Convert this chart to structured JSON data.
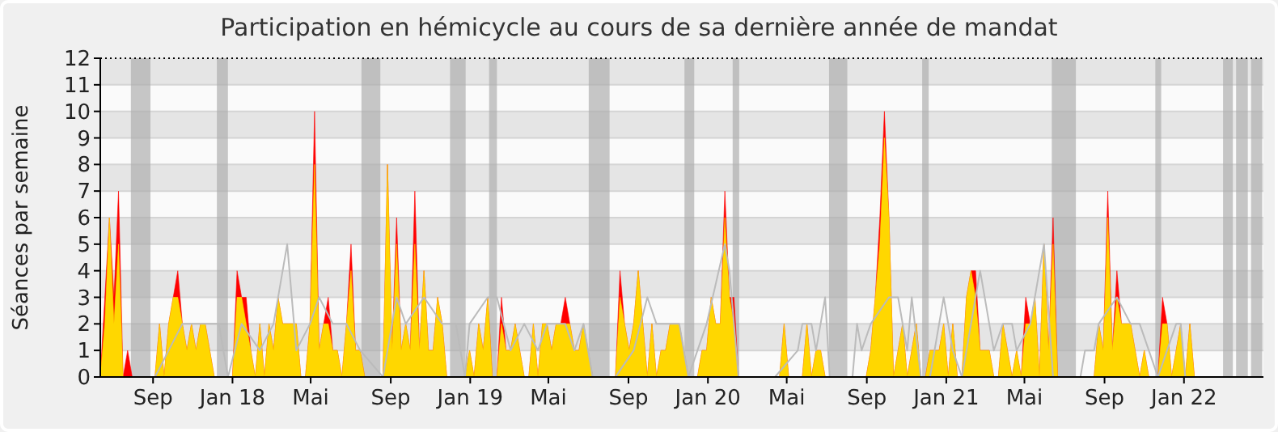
{
  "chart_data": {
    "type": "area",
    "title": "Participation en hémicycle au cours de sa dernière année de mandat",
    "ylabel": "Séances par semaine",
    "xlim": [
      "2017-06-12",
      "2022-05-03"
    ],
    "xticks": [
      {
        "value": "2017-09-01",
        "label": "Sep"
      },
      {
        "value": "2018-01-01",
        "label": "Jan 18"
      },
      {
        "value": "2018-05-01",
        "label": "Mai"
      },
      {
        "value": "2018-09-01",
        "label": "Sep"
      },
      {
        "value": "2019-01-01",
        "label": "Jan 19"
      },
      {
        "value": "2019-05-01",
        "label": "Mai"
      },
      {
        "value": "2019-09-01",
        "label": "Sep"
      },
      {
        "value": "2020-01-01",
        "label": "Jan 20"
      },
      {
        "value": "2020-05-01",
        "label": "Mai"
      },
      {
        "value": "2020-09-01",
        "label": "Sep"
      },
      {
        "value": "2021-01-01",
        "label": "Jan 21"
      },
      {
        "value": "2021-05-01",
        "label": "Mai"
      },
      {
        "value": "2021-09-01",
        "label": "Sep"
      },
      {
        "value": "2022-01-01",
        "label": "Jan 22"
      }
    ],
    "ylim": [
      0,
      12
    ],
    "yticks": [
      0,
      1,
      2,
      3,
      4,
      5,
      6,
      7,
      8,
      9,
      10,
      11,
      12
    ],
    "grid": "y",
    "x": [
      "2017-06-12",
      "2017-06-19",
      "2017-06-26",
      "2017-07-03",
      "2017-07-10",
      "2017-07-17",
      "2017-07-24",
      "2017-07-31",
      "2017-09-04",
      "2017-09-11",
      "2017-09-18",
      "2017-09-25",
      "2017-10-02",
      "2017-10-09",
      "2017-10-16",
      "2017-10-23",
      "2017-10-30",
      "2017-11-06",
      "2017-11-13",
      "2017-11-20",
      "2017-11-27",
      "2017-12-04",
      "2018-01-01",
      "2018-01-08",
      "2018-01-15",
      "2018-01-22",
      "2018-01-29",
      "2018-02-05",
      "2018-02-12",
      "2018-02-19",
      "2018-02-26",
      "2018-03-05",
      "2018-03-12",
      "2018-03-19",
      "2018-03-26",
      "2018-04-02",
      "2018-04-09",
      "2018-04-16",
      "2018-04-23",
      "2018-04-30",
      "2018-05-07",
      "2018-05-14",
      "2018-05-21",
      "2018-05-28",
      "2018-06-04",
      "2018-06-11",
      "2018-06-18",
      "2018-06-25",
      "2018-07-02",
      "2018-07-09",
      "2018-07-16",
      "2018-07-23",
      "2018-08-20",
      "2018-08-27",
      "2018-09-03",
      "2018-09-10",
      "2018-09-17",
      "2018-09-24",
      "2018-10-01",
      "2018-10-08",
      "2018-10-15",
      "2018-10-22",
      "2018-10-29",
      "2018-11-05",
      "2018-11-12",
      "2018-11-19",
      "2018-11-26",
      "2018-12-24",
      "2018-12-31",
      "2019-01-07",
      "2019-01-14",
      "2019-01-21",
      "2019-01-28",
      "2019-02-04",
      "2019-02-11",
      "2019-02-18",
      "2019-02-25",
      "2019-03-04",
      "2019-03-11",
      "2019-03-18",
      "2019-03-25",
      "2019-04-01",
      "2019-04-08",
      "2019-04-15",
      "2019-04-22",
      "2019-04-29",
      "2019-05-06",
      "2019-05-13",
      "2019-05-20",
      "2019-05-27",
      "2019-06-03",
      "2019-06-10",
      "2019-06-17",
      "2019-06-24",
      "2019-07-01",
      "2019-07-08",
      "2019-08-12",
      "2019-08-19",
      "2019-08-26",
      "2019-09-02",
      "2019-09-09",
      "2019-09-16",
      "2019-09-23",
      "2019-09-30",
      "2019-10-07",
      "2019-10-14",
      "2019-10-21",
      "2019-10-28",
      "2019-11-04",
      "2019-11-11",
      "2019-11-18",
      "2019-11-25",
      "2019-12-02",
      "2019-12-09",
      "2019-12-16",
      "2019-12-23",
      "2019-12-30",
      "2020-01-06",
      "2020-01-13",
      "2020-01-20",
      "2020-01-27",
      "2020-02-03",
      "2020-02-10",
      "2020-02-17",
      "2020-04-20",
      "2020-04-27",
      "2020-05-04",
      "2020-05-25",
      "2020-06-01",
      "2020-06-08",
      "2020-06-15",
      "2020-06-22",
      "2020-06-29",
      "2020-08-31",
      "2020-09-07",
      "2020-09-14",
      "2020-09-21",
      "2020-09-28",
      "2020-10-05",
      "2020-10-12",
      "2020-10-19",
      "2020-10-26",
      "2020-11-02",
      "2020-11-09",
      "2020-11-16",
      "2020-11-23",
      "2020-11-30",
      "2020-12-07",
      "2020-12-21",
      "2020-12-28",
      "2021-01-04",
      "2021-01-11",
      "2021-01-18",
      "2021-01-25",
      "2021-02-01",
      "2021-02-08",
      "2021-02-15",
      "2021-02-22",
      "2021-03-08",
      "2021-03-15",
      "2021-03-22",
      "2021-03-29",
      "2021-04-05",
      "2021-04-12",
      "2021-04-19",
      "2021-04-26",
      "2021-05-03",
      "2021-05-10",
      "2021-05-17",
      "2021-05-24",
      "2021-05-31",
      "2021-06-07",
      "2021-06-14",
      "2021-06-21",
      "2021-08-16",
      "2021-08-23",
      "2021-08-30",
      "2021-09-06",
      "2021-09-13",
      "2021-09-20",
      "2021-09-27",
      "2021-10-04",
      "2021-10-11",
      "2021-10-18",
      "2021-10-25",
      "2021-11-01",
      "2021-11-08",
      "2021-11-22",
      "2021-11-29",
      "2021-12-06",
      "2021-12-13",
      "2021-12-20",
      "2021-12-27",
      "2022-01-03",
      "2022-01-10",
      "2022-01-17"
    ],
    "series": [
      {
        "type": "line",
        "color": "#bbbbbb",
        "x": [
          "2017-06-12",
          "2017-09-04",
          "2017-09-25",
          "2017-10-16",
          "2017-11-13",
          "2017-12-11",
          "2017-12-25",
          "2018-01-15",
          "2018-02-12",
          "2018-03-05",
          "2018-03-26",
          "2018-04-09",
          "2018-04-30",
          "2018-05-14",
          "2018-06-04",
          "2018-06-25",
          "2018-07-16",
          "2018-08-20",
          "2018-09-10",
          "2018-09-24",
          "2018-10-22",
          "2018-11-19",
          "2018-12-10",
          "2018-12-24",
          "2018-12-31",
          "2019-01-28",
          "2019-02-11",
          "2019-03-04",
          "2019-03-25",
          "2019-04-15",
          "2019-04-29",
          "2019-05-27",
          "2019-06-10",
          "2019-06-24",
          "2019-07-08",
          "2019-08-12",
          "2019-09-09",
          "2019-09-30",
          "2019-10-14",
          "2019-11-18",
          "2019-12-02",
          "2019-12-16",
          "2019-12-30",
          "2020-01-27",
          "2020-02-03",
          "2020-02-17",
          "2020-04-13",
          "2020-05-18",
          "2020-05-25",
          "2020-06-08",
          "2020-06-15",
          "2020-06-29",
          "2020-07-06",
          "2020-08-10",
          "2020-08-17",
          "2020-08-24",
          "2020-09-07",
          "2020-10-05",
          "2020-10-19",
          "2020-11-02",
          "2020-11-09",
          "2020-11-23",
          "2020-12-07",
          "2020-12-28",
          "2021-01-11",
          "2021-01-25",
          "2021-02-08",
          "2021-02-22",
          "2021-03-15",
          "2021-03-29",
          "2021-04-12",
          "2021-04-19",
          "2021-05-10",
          "2021-05-31",
          "2021-06-14",
          "2021-07-26",
          "2021-08-02",
          "2021-08-16",
          "2021-08-23",
          "2021-09-20",
          "2021-10-11",
          "2021-10-25",
          "2021-11-08",
          "2021-11-22",
          "2021-12-06",
          "2021-12-20",
          "2021-12-27",
          "2022-01-03"
        ],
        "values": [
          0,
          0,
          1,
          2,
          2,
          2,
          0,
          2,
          1,
          2,
          5,
          1,
          2,
          3,
          2,
          2,
          1,
          0,
          3,
          2,
          3,
          2,
          2,
          0,
          2,
          3,
          3,
          1,
          2,
          1,
          2,
          2,
          1,
          2,
          0,
          0,
          1,
          3,
          2,
          2,
          0,
          1,
          2,
          5,
          4,
          0,
          0,
          1,
          2,
          2,
          1,
          3,
          0,
          0,
          2,
          1,
          2,
          3,
          3,
          1,
          3,
          0,
          0,
          3,
          1,
          0,
          2,
          4,
          1,
          2,
          2,
          1,
          2,
          5,
          0,
          0,
          1,
          1,
          2,
          3,
          2,
          2,
          1,
          0,
          1,
          2,
          2,
          0
        ]
      },
      {
        "color": "#ff0000",
        "values": [
          0,
          3,
          6,
          3,
          7,
          0,
          1,
          0,
          0,
          2,
          0,
          2,
          3,
          4,
          2,
          1,
          2,
          1,
          2,
          2,
          1,
          0,
          0,
          4,
          3,
          3,
          1,
          0,
          2,
          0,
          2,
          1,
          3,
          2,
          2,
          2,
          2,
          0,
          0,
          2,
          10,
          1,
          2,
          3,
          1,
          1,
          0,
          2,
          5,
          1,
          1,
          0,
          0,
          8,
          1,
          6,
          1,
          2,
          1,
          7,
          1,
          4,
          1,
          1,
          3,
          2,
          0,
          0,
          1,
          0,
          2,
          1,
          3,
          0,
          0,
          3,
          1,
          1,
          2,
          1,
          0,
          0,
          2,
          0,
          2,
          2,
          1,
          2,
          2,
          3,
          2,
          1,
          1,
          2,
          1,
          0,
          0,
          4,
          2,
          1,
          2,
          4,
          2,
          0,
          2,
          0,
          1,
          1,
          2,
          2,
          2,
          1,
          0,
          0,
          0,
          1,
          1,
          3,
          2,
          2,
          7,
          3,
          3,
          0,
          0,
          2,
          0,
          0,
          2,
          0,
          1,
          1,
          0,
          0,
          1,
          3,
          6,
          10,
          6,
          0,
          1,
          2,
          0,
          1,
          2,
          0,
          0,
          1,
          1,
          2,
          0,
          2,
          0,
          0,
          3,
          4,
          4,
          1,
          1,
          0,
          0,
          2,
          1,
          0,
          1,
          0,
          3,
          2,
          3,
          0,
          5,
          1,
          6,
          0,
          0,
          2,
          1,
          7,
          1,
          4,
          2,
          2,
          2,
          1,
          0,
          1,
          0,
          0,
          3,
          2,
          0,
          1,
          2,
          0,
          2,
          0
        ]
      },
      {
        "color": "#ffd700",
        "values": [
          0,
          2,
          6,
          2,
          5,
          0,
          0,
          0,
          0,
          2,
          0,
          2,
          3,
          3,
          2,
          1,
          2,
          1,
          2,
          2,
          1,
          0,
          0,
          3,
          3,
          2,
          1,
          0,
          2,
          0,
          2,
          1,
          3,
          2,
          2,
          2,
          2,
          0,
          0,
          2,
          8,
          1,
          2,
          2,
          1,
          1,
          0,
          2,
          4,
          1,
          1,
          0,
          0,
          8,
          1,
          5,
          1,
          2,
          1,
          5,
          1,
          4,
          1,
          1,
          3,
          2,
          0,
          0,
          1,
          0,
          2,
          1,
          3,
          0,
          0,
          2,
          1,
          1,
          2,
          1,
          0,
          0,
          2,
          0,
          2,
          2,
          1,
          2,
          2,
          2,
          2,
          1,
          1,
          2,
          1,
          0,
          0,
          3,
          2,
          1,
          2,
          4,
          2,
          0,
          2,
          0,
          1,
          1,
          2,
          2,
          2,
          1,
          0,
          0,
          0,
          1,
          1,
          3,
          2,
          2,
          6,
          3,
          2,
          0,
          0,
          2,
          0,
          0,
          2,
          0,
          1,
          1,
          0,
          0,
          1,
          3,
          5,
          9,
          6,
          0,
          1,
          2,
          0,
          1,
          2,
          0,
          0,
          1,
          1,
          2,
          0,
          2,
          0,
          0,
          3,
          4,
          3,
          1,
          1,
          0,
          0,
          2,
          1,
          0,
          1,
          0,
          2,
          2,
          3,
          0,
          5,
          1,
          5,
          0,
          0,
          2,
          1,
          6,
          1,
          3,
          2,
          2,
          2,
          1,
          0,
          1,
          0,
          0,
          2,
          2,
          0,
          1,
          2,
          0,
          2,
          0
        ]
      }
    ],
    "bands": [
      {
        "axis": "x",
        "from": "2017-07-29",
        "to": "2017-08-28",
        "color": "#aaaaaa"
      },
      {
        "axis": "x",
        "from": "2017-12-08",
        "to": "2017-12-25",
        "color": "#aaaaaa"
      },
      {
        "axis": "x",
        "from": "2018-07-18",
        "to": "2018-08-16",
        "color": "#aaaaaa"
      },
      {
        "axis": "x",
        "from": "2018-12-01",
        "to": "2018-12-25",
        "color": "#aaaaaa"
      },
      {
        "axis": "x",
        "from": "2019-01-30",
        "to": "2019-02-11",
        "color": "#aaaaaa"
      },
      {
        "axis": "x",
        "from": "2019-07-02",
        "to": "2019-08-03",
        "color": "#aaaaaa"
      },
      {
        "axis": "x",
        "from": "2019-11-26",
        "to": "2019-12-11",
        "color": "#aaaaaa"
      },
      {
        "axis": "x",
        "from": "2020-02-08",
        "to": "2020-02-18",
        "color": "#aaaaaa"
      },
      {
        "axis": "x",
        "from": "2020-07-05",
        "to": "2020-08-02",
        "color": "#aaaaaa"
      },
      {
        "axis": "x",
        "from": "2020-11-25",
        "to": "2020-12-05",
        "color": "#aaaaaa"
      },
      {
        "axis": "x",
        "from": "2021-06-12",
        "to": "2021-07-19",
        "color": "#aaaaaa"
      },
      {
        "axis": "x",
        "from": "2021-11-18",
        "to": "2021-11-27",
        "color": "#aaaaaa"
      },
      {
        "axis": "x",
        "from": "2022-03-02",
        "to": "2022-03-17",
        "color": "#aaaaaa"
      },
      {
        "axis": "x",
        "from": "2022-03-22",
        "to": "2022-04-09",
        "color": "#aaaaaa"
      },
      {
        "axis": "x",
        "from": "2022-04-14",
        "to": "2022-05-01",
        "color": "#aaaaaa"
      }
    ]
  }
}
